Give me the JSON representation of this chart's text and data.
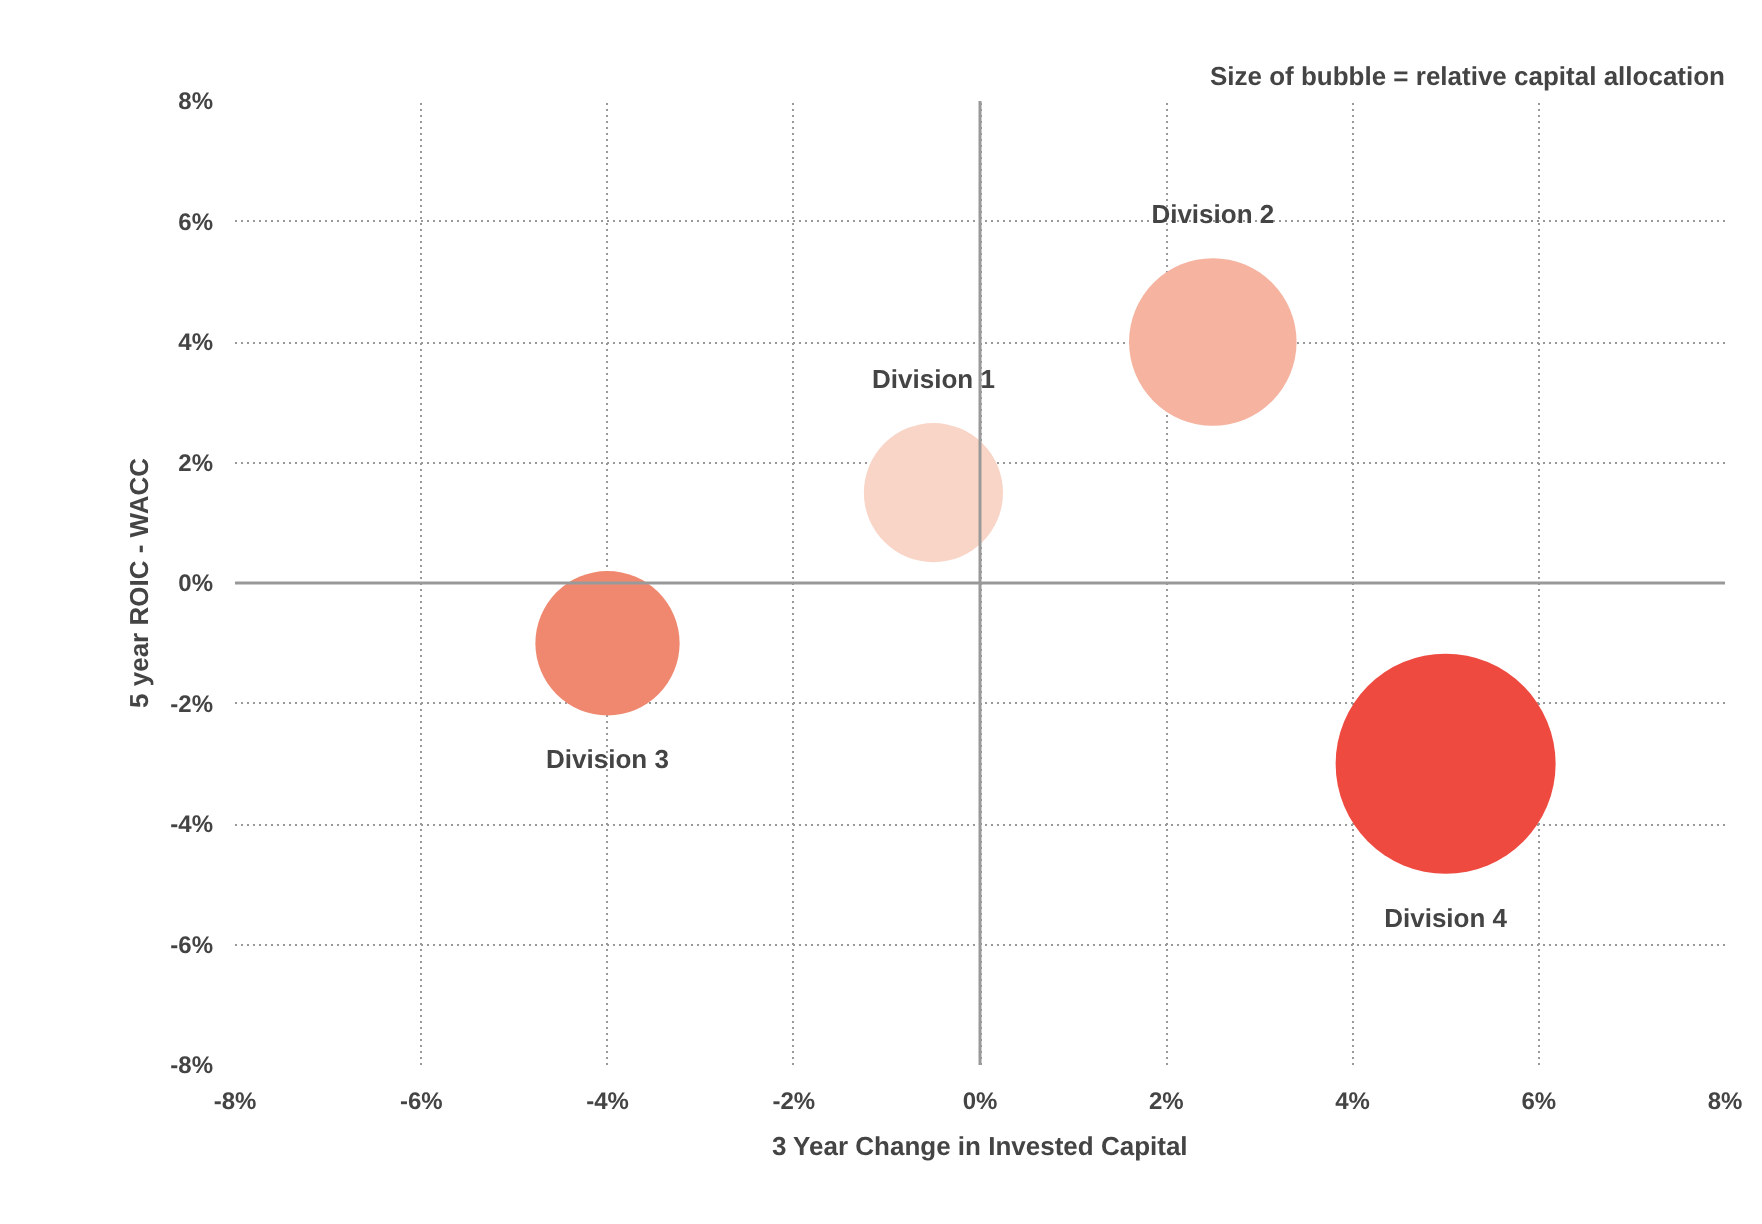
{
  "chart_data": {
    "type": "bubble",
    "title": "Size of bubble = relative capital allocation",
    "xlabel": "3 Year Change in Invested Capital",
    "ylabel": "5 year ROIC - WACC",
    "series": [
      {
        "name": "Division 1",
        "color": "#f9d5c7",
        "x": [
          -0.5
        ],
        "values": [
          1.5
        ],
        "sizes": [
          0.4
        ]
      },
      {
        "name": "Division 2",
        "color": "#f5b3a0",
        "x": [
          2.5
        ],
        "values": [
          4
        ],
        "sizes": [
          0.58
        ]
      },
      {
        "name": "Division 3",
        "color": "#f08870",
        "x": [
          -4
        ],
        "values": [
          -1
        ],
        "sizes": [
          0.43
        ]
      },
      {
        "name": "Division 4",
        "color": "#ee4a40",
        "x": [
          5
        ],
        "values": [
          -3
        ],
        "sizes": [
          1
        ]
      }
    ],
    "xlim": [
      -8,
      8
    ],
    "ylim": [
      -8,
      8
    ],
    "xticks": [
      {
        "value": -8,
        "label": "-8%"
      },
      {
        "value": -6,
        "label": "-6%"
      },
      {
        "value": -4,
        "label": "-4%"
      },
      {
        "value": -2,
        "label": "-2%"
      },
      {
        "value": 0,
        "label": "0%"
      },
      {
        "value": 2,
        "label": "2%"
      },
      {
        "value": 4,
        "label": "4%"
      },
      {
        "value": 6,
        "label": "6%"
      },
      {
        "value": 8,
        "label": "8%"
      }
    ],
    "yticks": [
      {
        "value": -8,
        "label": "-8%"
      },
      {
        "value": -6,
        "label": "-6%"
      },
      {
        "value": -4,
        "label": "-4%"
      },
      {
        "value": -2,
        "label": "-2%"
      },
      {
        "value": 0,
        "label": "0%"
      },
      {
        "value": 2,
        "label": "2%"
      },
      {
        "value": 4,
        "label": "4%"
      },
      {
        "value": 6,
        "label": "6%"
      },
      {
        "value": 8,
        "label": "8%"
      }
    ],
    "grid": true
  }
}
